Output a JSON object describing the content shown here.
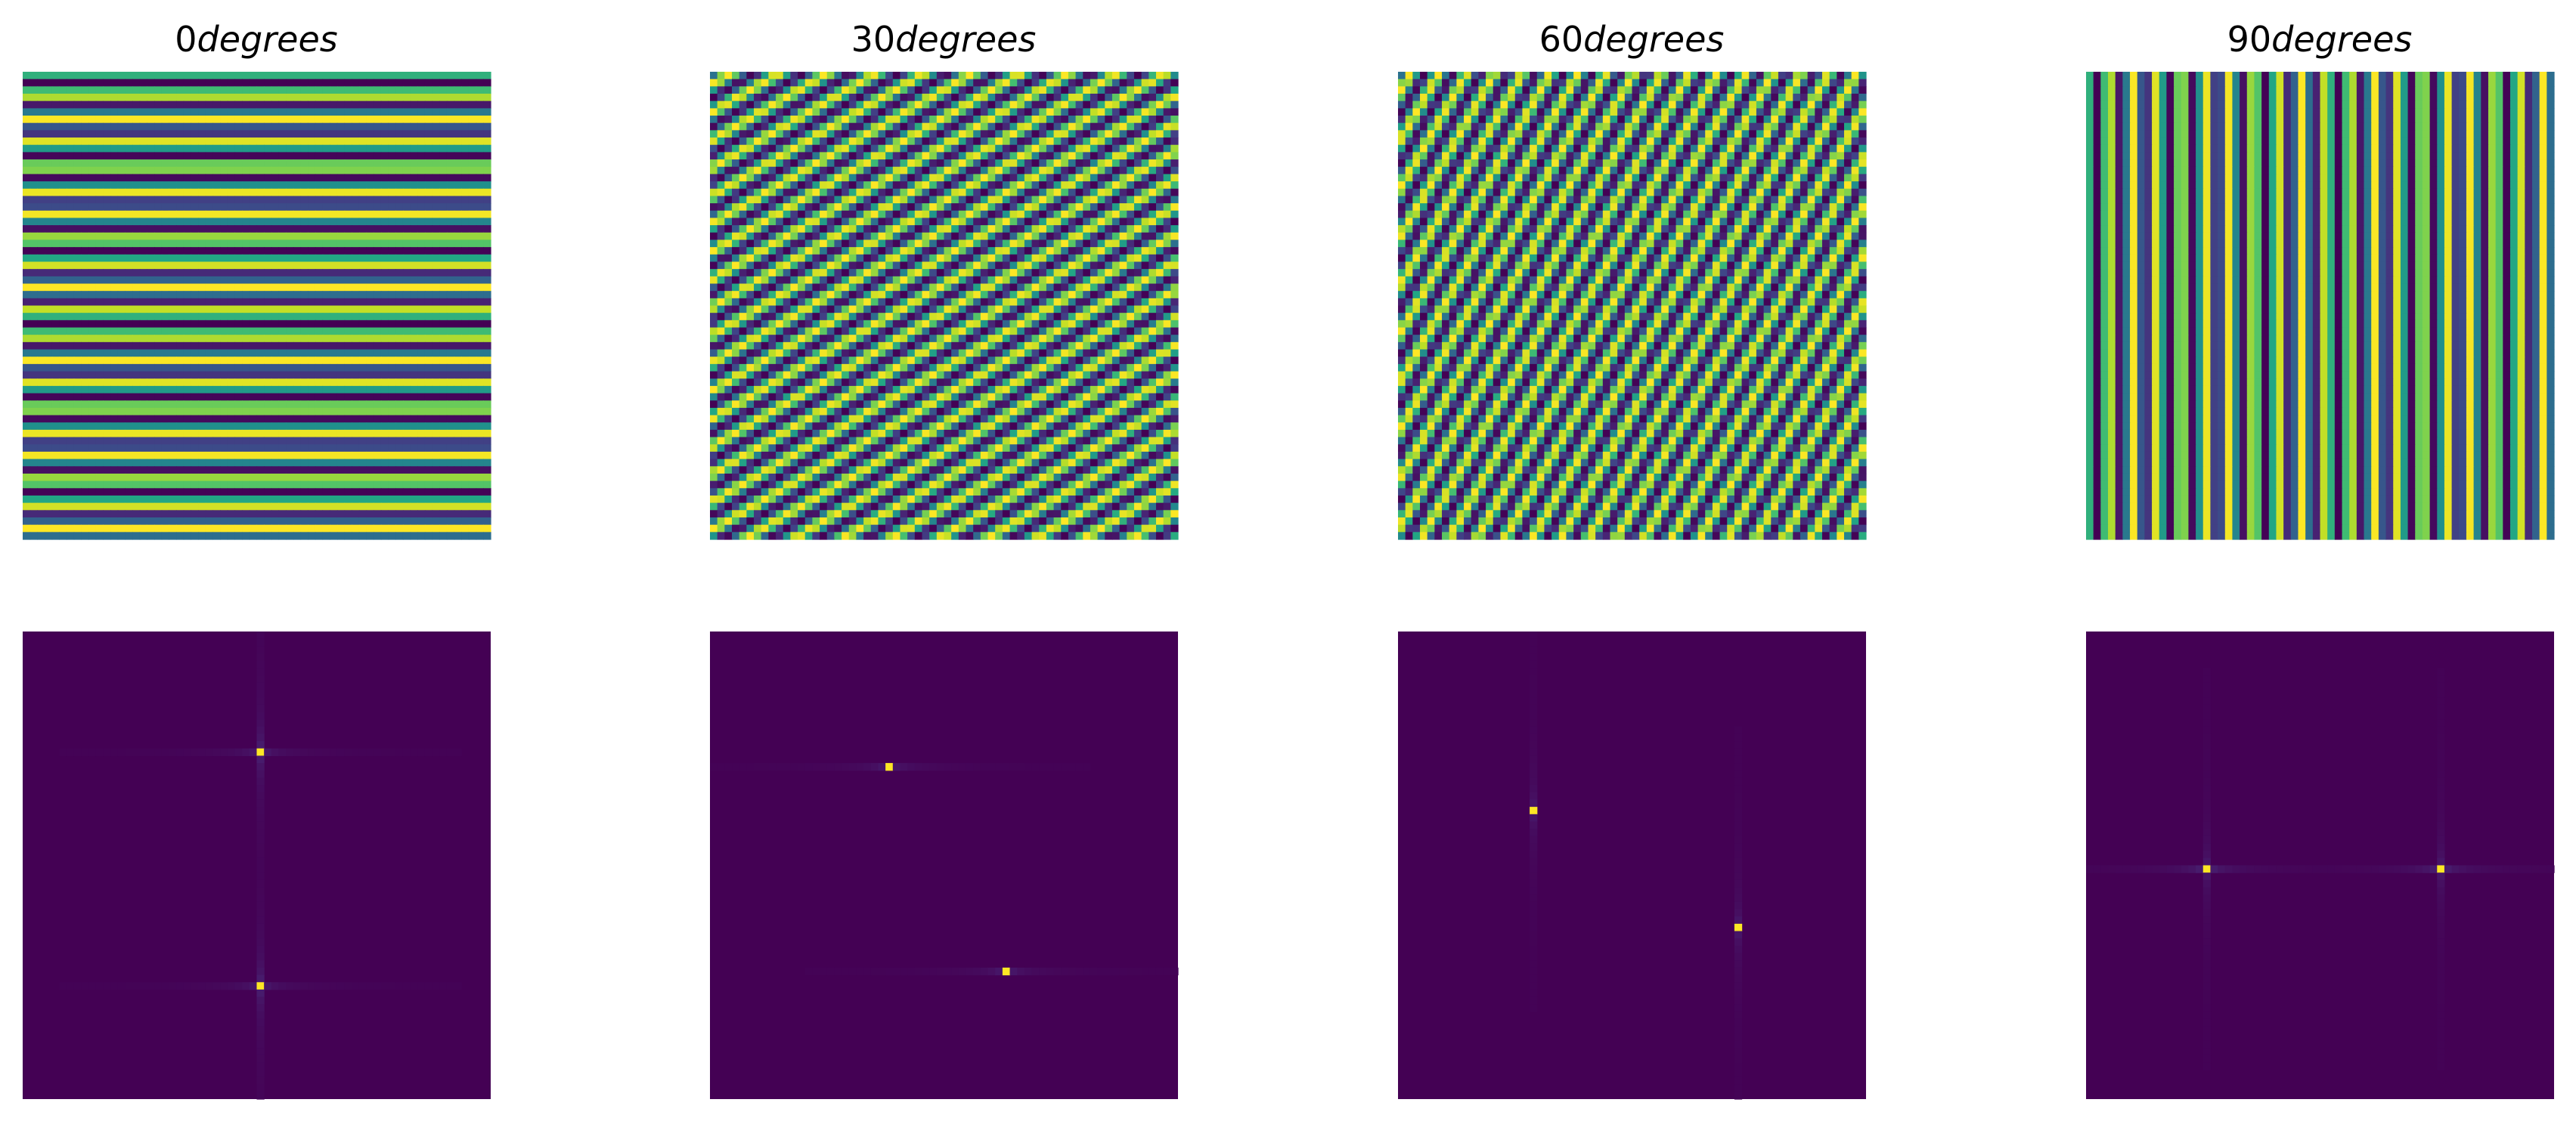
{
  "figure": {
    "colormap": "viridis",
    "grid": false,
    "axes_visible": false,
    "colors": {
      "background": "#ffffff",
      "viridis_dark": "#440154",
      "viridis_blue": "#3b528b",
      "viridis_teal": "#21918c",
      "viridis_green": "#5ec962",
      "viridis_yellow": "#fde725"
    }
  },
  "chart_data": [
    {
      "type": "heatmap",
      "panel": "top",
      "title_num": "0",
      "title_word": "degrees",
      "angle_deg": 0,
      "grid_size": 64,
      "pattern": "sinusoidal grating",
      "wavelength_cells": 3.3
    },
    {
      "type": "heatmap",
      "panel": "top",
      "title_num": "30",
      "title_word": "degrees",
      "angle_deg": 30,
      "grid_size": 64,
      "pattern": "sinusoidal grating",
      "wavelength_cells": 3.3
    },
    {
      "type": "heatmap",
      "panel": "top",
      "title_num": "60",
      "title_word": "degrees",
      "angle_deg": 60,
      "grid_size": 64,
      "pattern": "sinusoidal grating",
      "wavelength_cells": 3.3
    },
    {
      "type": "heatmap",
      "panel": "top",
      "title_num": "90",
      "title_word": "degrees",
      "angle_deg": 90,
      "grid_size": 64,
      "pattern": "sinusoidal grating",
      "wavelength_cells": 3.3
    },
    {
      "type": "heatmap",
      "panel": "bottom",
      "pattern": "fft magnitude",
      "grid_size": 64,
      "peaks": [
        [
          0,
          -16
        ],
        [
          0,
          16
        ]
      ]
    },
    {
      "type": "heatmap",
      "panel": "bottom",
      "pattern": "fft magnitude",
      "grid_size": 64,
      "peaks": [
        [
          -8,
          -14
        ],
        [
          8,
          14
        ]
      ]
    },
    {
      "type": "heatmap",
      "panel": "bottom",
      "pattern": "fft magnitude",
      "grid_size": 64,
      "peaks": [
        [
          -14,
          -8
        ],
        [
          14,
          8
        ]
      ]
    },
    {
      "type": "heatmap",
      "panel": "bottom",
      "pattern": "fft magnitude",
      "grid_size": 64,
      "peaks": [
        [
          -16,
          0
        ],
        [
          16,
          0
        ]
      ]
    }
  ]
}
